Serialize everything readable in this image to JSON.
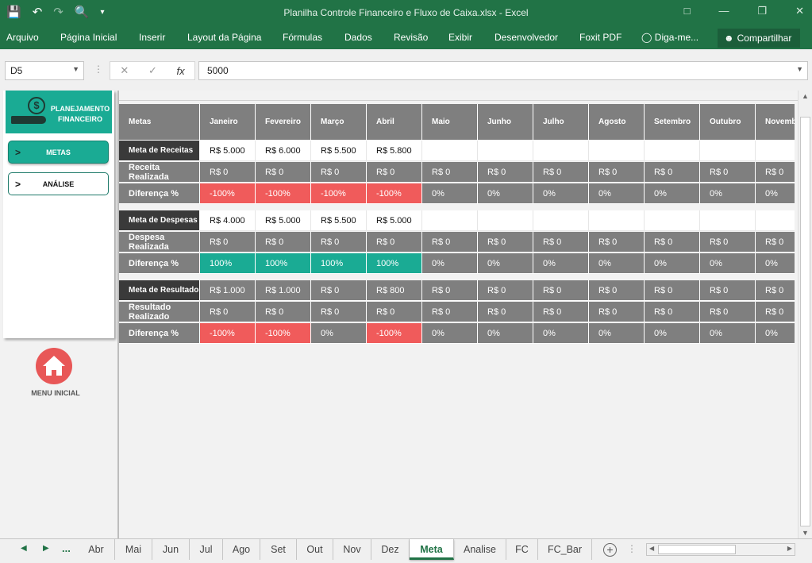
{
  "window": {
    "title": "Planilha Controle Financeiro e Fluxo de Caixa.xlsx - Excel"
  },
  "ribbon": {
    "tabs": [
      "Arquivo",
      "Página Inicial",
      "Inserir",
      "Layout da Página",
      "Fórmulas",
      "Dados",
      "Revisão",
      "Exibir",
      "Desenvolvedor",
      "Foxit PDF",
      "Diga-me..."
    ],
    "share_label": "Compartilhar"
  },
  "formula_bar": {
    "name_box": "D5",
    "fx_label": "fx",
    "value": "5000"
  },
  "panel": {
    "logo_text": "PLANEJAMENTO FINANCEIRO",
    "coin_symbol": "$",
    "buttons": [
      {
        "label": "METAS",
        "marker": ">"
      },
      {
        "label": "ANÁLISE",
        "marker": ">"
      }
    ],
    "home_label": "MENU INICIAL"
  },
  "sheet": {
    "header_label": "Metas",
    "months": [
      "Janeiro",
      "Fevereiro",
      "Março",
      "Abril",
      "Maio",
      "Junho",
      "Julho",
      "Agosto",
      "Setembro",
      "Outubro",
      "Novemb"
    ],
    "rows": [
      {
        "label": "Meta de Receitas",
        "style": "dark",
        "values": [
          "R$ 5.000",
          "R$ 6.000",
          "R$ 5.500",
          "R$ 5.800",
          "",
          "",
          "",
          "",
          "",
          "",
          ""
        ],
        "cellstyles": [
          "white",
          "white",
          "white",
          "white",
          "white",
          "white",
          "white",
          "white",
          "white",
          "white",
          "white"
        ]
      },
      {
        "label": "Receita Realizada",
        "style": "gray",
        "values": [
          "R$ 0",
          "R$ 0",
          "R$ 0",
          "R$ 0",
          "R$ 0",
          "R$ 0",
          "R$ 0",
          "R$ 0",
          "R$ 0",
          "R$ 0",
          "R$ 0"
        ],
        "cellstyles": [
          "gray",
          "gray",
          "gray",
          "gray",
          "gray",
          "gray",
          "gray",
          "gray",
          "gray",
          "gray",
          "gray"
        ]
      },
      {
        "label": "Diferença %",
        "style": "gray",
        "values": [
          "-100%",
          "-100%",
          "-100%",
          "-100%",
          "0%",
          "0%",
          "0%",
          "0%",
          "0%",
          "0%",
          "0%"
        ],
        "cellstyles": [
          "red",
          "red",
          "red",
          "red",
          "gray",
          "gray",
          "gray",
          "gray",
          "gray",
          "gray",
          "gray"
        ]
      },
      {
        "label": "Meta de Despesas",
        "style": "dark",
        "values": [
          "R$ 4.000",
          "R$ 5.000",
          "R$ 5.500",
          "R$ 5.000",
          "",
          "",
          "",
          "",
          "",
          "",
          ""
        ],
        "cellstyles": [
          "white",
          "white",
          "white",
          "white",
          "white",
          "white",
          "white",
          "white",
          "white",
          "white",
          "white"
        ]
      },
      {
        "label": "Despesa Realizada",
        "style": "gray",
        "values": [
          "R$ 0",
          "R$ 0",
          "R$ 0",
          "R$ 0",
          "R$ 0",
          "R$ 0",
          "R$ 0",
          "R$ 0",
          "R$ 0",
          "R$ 0",
          "R$ 0"
        ],
        "cellstyles": [
          "gray",
          "gray",
          "gray",
          "gray",
          "gray",
          "gray",
          "gray",
          "gray",
          "gray",
          "gray",
          "gray"
        ]
      },
      {
        "label": "Diferença %",
        "style": "gray",
        "values": [
          "100%",
          "100%",
          "100%",
          "100%",
          "0%",
          "0%",
          "0%",
          "0%",
          "0%",
          "0%",
          "0%"
        ],
        "cellstyles": [
          "teal",
          "teal",
          "teal",
          "teal",
          "gray",
          "gray",
          "gray",
          "gray",
          "gray",
          "gray",
          "gray"
        ]
      },
      {
        "label": "Meta de Resultado",
        "style": "dark",
        "values": [
          "R$ 1.000",
          "R$ 1.000",
          "R$ 0",
          "R$ 800",
          "R$ 0",
          "R$ 0",
          "R$ 0",
          "R$ 0",
          "R$ 0",
          "R$ 0",
          "R$ 0"
        ],
        "cellstyles": [
          "gray",
          "gray",
          "gray",
          "gray",
          "gray",
          "gray",
          "gray",
          "gray",
          "gray",
          "gray",
          "gray"
        ]
      },
      {
        "label": "Resultado Realizado",
        "style": "gray",
        "values": [
          "R$ 0",
          "R$ 0",
          "R$ 0",
          "R$ 0",
          "R$ 0",
          "R$ 0",
          "R$ 0",
          "R$ 0",
          "R$ 0",
          "R$ 0",
          "R$ 0"
        ],
        "cellstyles": [
          "gray",
          "gray",
          "gray",
          "gray",
          "gray",
          "gray",
          "gray",
          "gray",
          "gray",
          "gray",
          "gray"
        ]
      },
      {
        "label": "Diferença %",
        "style": "gray",
        "values": [
          "-100%",
          "-100%",
          "0%",
          "-100%",
          "0%",
          "0%",
          "0%",
          "0%",
          "0%",
          "0%",
          "0%"
        ],
        "cellstyles": [
          "red",
          "red",
          "gray",
          "red",
          "gray",
          "gray",
          "gray",
          "gray",
          "gray",
          "gray",
          "gray"
        ]
      }
    ]
  },
  "sheet_tabs": {
    "tabs": [
      "Abr",
      "Mai",
      "Jun",
      "Jul",
      "Ago",
      "Set",
      "Out",
      "Nov",
      "Dez",
      "Meta",
      "Analise",
      "FC",
      "FC_Bar"
    ],
    "active": "Meta",
    "ellipsis": "..."
  },
  "colors": {
    "excel_green": "#217346",
    "teal": "#1aab94",
    "red": "#f05b5b",
    "gray": "#7f7f7f",
    "dark": "#3a3a3a"
  }
}
